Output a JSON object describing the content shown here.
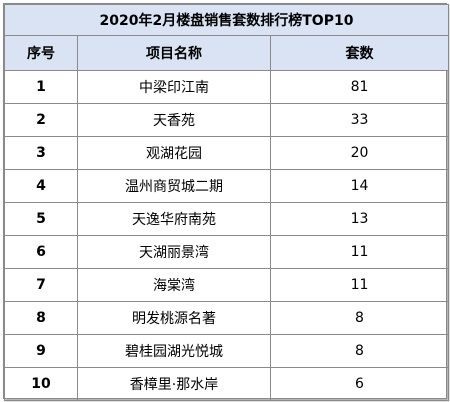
{
  "chart_data": {
    "type": "table",
    "title": "2020年2月楼盘销售套数排行榜TOP10",
    "columns": [
      "序号",
      "项目名称",
      "套数"
    ],
    "rows": [
      {
        "rank": "1",
        "name": "中梁印江南",
        "units": "81"
      },
      {
        "rank": "2",
        "name": "天香苑",
        "units": "33"
      },
      {
        "rank": "3",
        "name": "观湖花园",
        "units": "20"
      },
      {
        "rank": "4",
        "name": "温州商贸城二期",
        "units": "14"
      },
      {
        "rank": "5",
        "name": "天逸华府南苑",
        "units": "13"
      },
      {
        "rank": "6",
        "name": "天湖丽景湾",
        "units": "11"
      },
      {
        "rank": "7",
        "name": "海棠湾",
        "units": "11"
      },
      {
        "rank": "8",
        "name": "明发桃源名著",
        "units": "8"
      },
      {
        "rank": "9",
        "name": "碧桂园湖光悦城",
        "units": "8"
      },
      {
        "rank": "10",
        "name": "香樟里·那水岸",
        "units": "6"
      }
    ]
  },
  "colors": {
    "header_bg": "#dae3f3",
    "border": "#8a8a8a"
  }
}
